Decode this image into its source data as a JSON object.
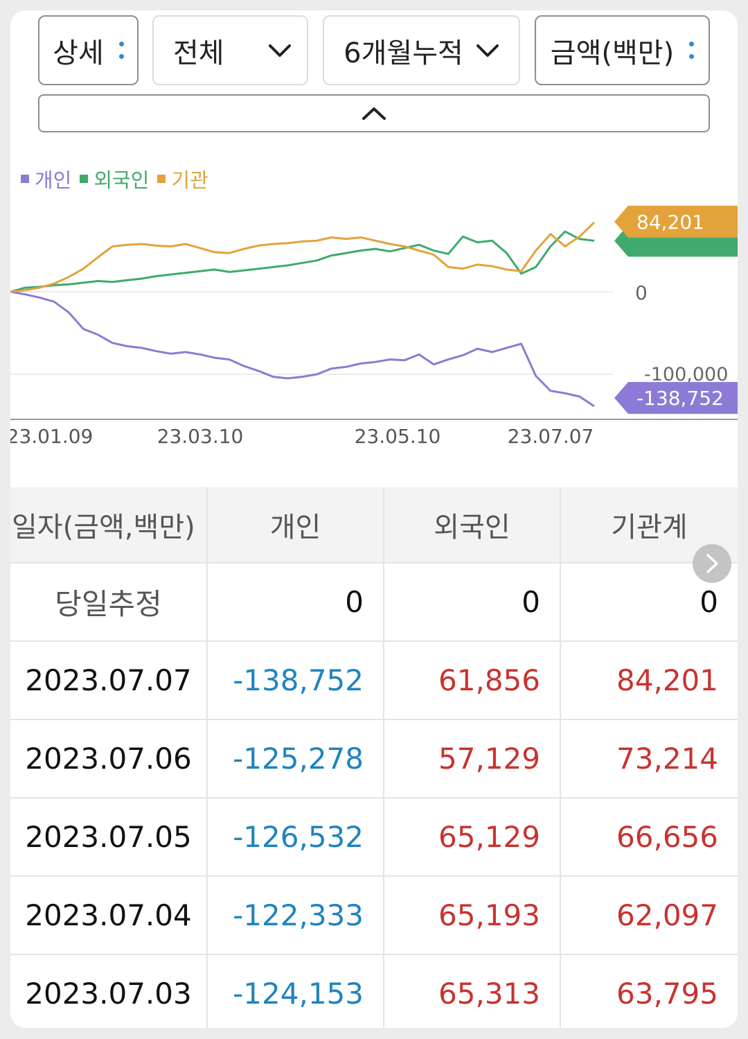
{
  "controls": {
    "detail": "상세",
    "scope": "전체",
    "period": "6개월누적",
    "unit": "금액(백만)"
  },
  "legend": [
    {
      "name": "개인",
      "color": "#8b7bd6"
    },
    {
      "name": "외국인",
      "color": "#3faa6b"
    },
    {
      "name": "기관",
      "color": "#e3a33a"
    }
  ],
  "chart_data": {
    "type": "line",
    "x_tick_labels": [
      "23.01.09",
      "23.03.10",
      "23.05.10",
      "23.07.07"
    ],
    "y_axis_labels": [
      "0",
      "-100,000"
    ],
    "ylim": [
      -145000,
      100000
    ],
    "series": [
      {
        "name": "개인",
        "color": "#8b7bd6",
        "end_label": "-138,752",
        "values": [
          0,
          -3000,
          -7000,
          -12000,
          -25000,
          -45000,
          -52000,
          -62000,
          -66000,
          -68000,
          -72000,
          -75000,
          -73000,
          -76000,
          -80000,
          -82000,
          -90000,
          -96000,
          -103000,
          -105000,
          -103000,
          -100000,
          -93000,
          -91000,
          -87000,
          -85000,
          -82000,
          -83000,
          -76000,
          -88000,
          -82000,
          -77000,
          -69000,
          -73000,
          -68000,
          -63000,
          -102000,
          -120000,
          -123000,
          -127000,
          -138752
        ]
      },
      {
        "name": "외국인",
        "color": "#3faa6b",
        "values": [
          0,
          5000,
          6000,
          8000,
          9000,
          11000,
          13000,
          12000,
          14000,
          16000,
          19000,
          21000,
          23000,
          25000,
          27000,
          24000,
          26000,
          28000,
          30000,
          32000,
          35000,
          38000,
          44000,
          47000,
          50000,
          52000,
          49000,
          53000,
          57000,
          50000,
          46000,
          67000,
          60000,
          62000,
          47000,
          22000,
          30000,
          55000,
          73000,
          64000,
          61856
        ]
      },
      {
        "name": "기관",
        "color": "#e3a33a",
        "values": [
          0,
          2000,
          5000,
          10000,
          18000,
          28000,
          42000,
          55000,
          57000,
          58000,
          56000,
          55000,
          58000,
          53000,
          48000,
          47000,
          52000,
          56000,
          58000,
          59000,
          61000,
          62000,
          66000,
          64000,
          66000,
          62000,
          58000,
          55000,
          50000,
          45000,
          30000,
          28000,
          33000,
          31000,
          27000,
          25000,
          50000,
          70000,
          55000,
          67000,
          84201
        ]
      }
    ]
  },
  "table": {
    "headers": [
      "일자(금액,백만)",
      "개인",
      "외국인",
      "기관계"
    ],
    "today": {
      "label": "당일추정",
      "individual": "0",
      "foreign": "0",
      "institution": "0"
    },
    "rows": [
      {
        "date": "2023.07.07",
        "individual": "-138,752",
        "foreign": "61,856",
        "institution": "84,201"
      },
      {
        "date": "2023.07.06",
        "individual": "-125,278",
        "foreign": "57,129",
        "institution": "73,214"
      },
      {
        "date": "2023.07.05",
        "individual": "-126,532",
        "foreign": "65,129",
        "institution": "66,656"
      },
      {
        "date": "2023.07.04",
        "individual": "-122,333",
        "foreign": "65,193",
        "institution": "62,097"
      },
      {
        "date": "2023.07.03",
        "individual": "-124,153",
        "foreign": "65,313",
        "institution": "63,795"
      }
    ]
  }
}
